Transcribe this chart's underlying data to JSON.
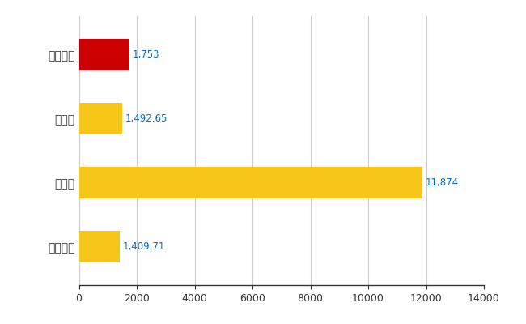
{
  "categories": [
    "我孫子市",
    "県平均",
    "県最大",
    "全国平均"
  ],
  "values": [
    1753,
    1492.65,
    11874,
    1409.71
  ],
  "bar_colors": [
    "#CC0000",
    "#F5C518",
    "#F5C518",
    "#F5C518"
  ],
  "value_labels": [
    "1,753",
    "1,492.65",
    "11,874",
    "1,409.71"
  ],
  "xlim": [
    0,
    14000
  ],
  "xticks": [
    0,
    2000,
    4000,
    6000,
    8000,
    10000,
    12000,
    14000
  ],
  "xtick_labels": [
    "0",
    "2000",
    "4000",
    "6000",
    "8000",
    "10000",
    "12000",
    "14000"
  ],
  "background_color": "#ffffff",
  "grid_color": "#cccccc",
  "label_color": "#0070C0",
  "bar_height": 0.5,
  "figsize": [
    6.5,
    4.0
  ],
  "dpi": 100
}
